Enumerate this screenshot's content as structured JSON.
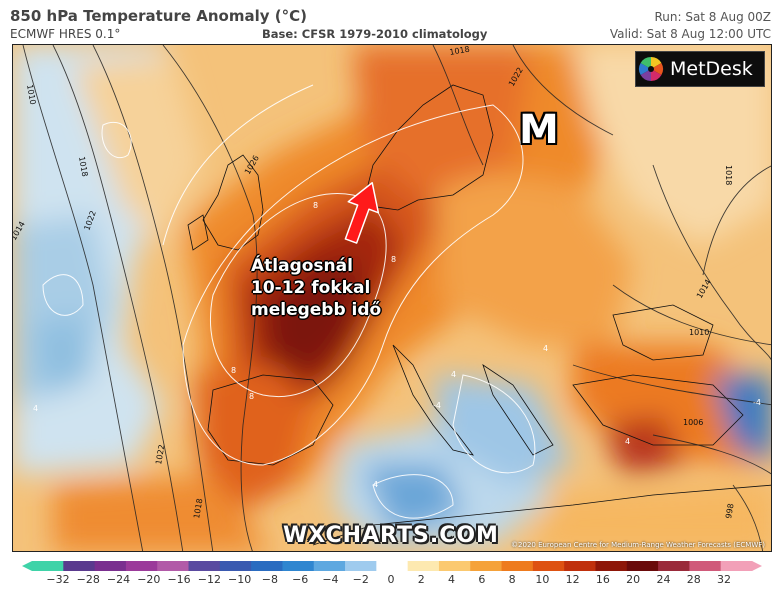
{
  "header": {
    "title": "850 hPa Temperature Anomaly (°C)",
    "model": "ECMWF HRES 0.1°",
    "base": "Base: CFSR 1979-2010 climatology",
    "run": "Run: Sat 8 Aug 00Z",
    "valid": "Valid: Sat 8 Aug 12:00 UTC"
  },
  "map": {
    "logo_text": "MetDesk",
    "marker_label": "M",
    "annotation": [
      "Átlagosnál",
      "10-12 fokkal",
      "melegebb idő"
    ],
    "watermark": "WXCHARTS.COM",
    "copyright": "©2020 European Centre for Medium-Range Weather Forecasts (ECMWF)",
    "isobar_labels": [
      "1010",
      "1018",
      "1014",
      "1022",
      "1026",
      "1018",
      "1022",
      "1018",
      "1014",
      "1010",
      "1006",
      "1022",
      "1018",
      "998"
    ],
    "anomaly_labels": [
      "8",
      "8",
      "8",
      "4",
      "4",
      "4",
      "4",
      "8",
      "4",
      "-4",
      "-4"
    ],
    "arrow_color": "#ff1a1a"
  },
  "colorbar": {
    "ticks": [
      "−32",
      "−28",
      "−24",
      "−20",
      "−16",
      "−12",
      "−10",
      "−8",
      "−6",
      "−4",
      "−2",
      "0",
      "2",
      "4",
      "6",
      "8",
      "10",
      "12",
      "16",
      "20",
      "24",
      "28",
      "32"
    ],
    "colors": [
      "#3fd3a8",
      "#5a3a8e",
      "#7a2f8f",
      "#9b3a9a",
      "#b25aa8",
      "#5a4aa0",
      "#3a5ab0",
      "#2a6cc0",
      "#2f86d0",
      "#5ea8e0",
      "#9fcbee",
      "#ffffff",
      "#fde9b0",
      "#fbc970",
      "#f5a23a",
      "#ee7b1e",
      "#de5212",
      "#c0300c",
      "#8e1608",
      "#6a0a0a",
      "#9a2a3a",
      "#d05a7a",
      "#f2a0b8"
    ]
  }
}
